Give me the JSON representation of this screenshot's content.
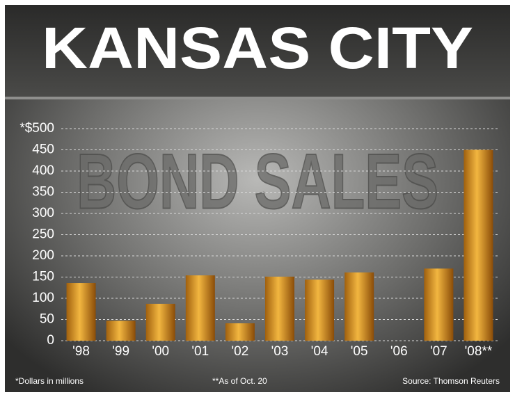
{
  "chart_data": {
    "type": "bar",
    "title": "KANSAS CITY",
    "subtitle": "BOND SALES",
    "categories": [
      "'98",
      "'99",
      "'00",
      "'01",
      "'02",
      "'03",
      "'04",
      "'05",
      "'06",
      "'07",
      "'08**"
    ],
    "values": [
      136,
      47,
      87,
      154,
      41,
      151,
      144,
      161,
      0,
      170,
      450
    ],
    "color": "#f2b640",
    "ylim": [
      0,
      500
    ],
    "yticks": [
      0,
      50,
      100,
      150,
      200,
      250,
      300,
      350,
      400,
      450,
      {
        "value": 500,
        "label": "*$500"
      }
    ],
    "grid": true,
    "notes": [
      "*Dollars in millions",
      "**As of Oct. 20",
      "Source: Thomson Reuters"
    ]
  }
}
